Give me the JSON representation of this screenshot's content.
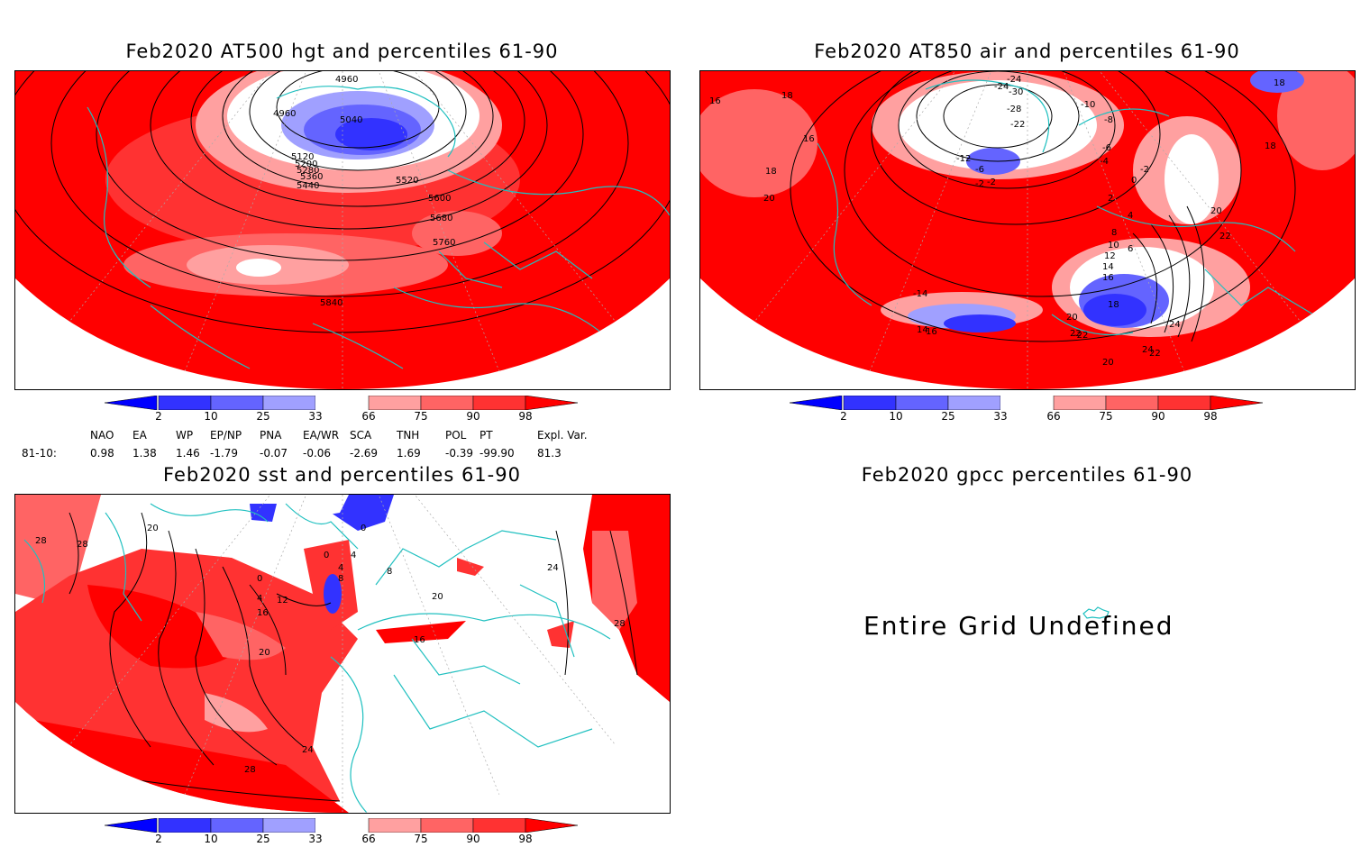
{
  "panels": {
    "z500": {
      "title": "Feb2020 AT500 hgt and percentiles 61-90",
      "contour_labels": [
        "4960",
        "4960",
        "5040",
        "5120",
        "5200",
        "5280",
        "5360",
        "5440",
        "5520",
        "5600",
        "5680",
        "5760",
        "5840"
      ]
    },
    "t850": {
      "title": "Feb2020 AT850 air and percentiles 61-90",
      "contour_labels": [
        "-24",
        "-30",
        "-28",
        "-22",
        "-10",
        "-8",
        "-6",
        "-4",
        "-2",
        "0",
        "2",
        "4",
        "6",
        "8",
        "10",
        "12",
        "14",
        "16",
        "18",
        "20",
        "22",
        "24",
        "-24",
        "-12",
        "-14",
        "-6",
        "-2",
        "14",
        "16",
        "16",
        "16",
        "18",
        "18",
        "18",
        "20",
        "20",
        "22",
        "22",
        "-22",
        "24",
        "20",
        "18",
        "-2"
      ]
    },
    "sst": {
      "title": "Feb2020 sst and percentiles 61-90",
      "contour_labels": [
        "28",
        "28",
        "20",
        "0",
        "4",
        "12",
        "16",
        "20",
        "24",
        "28",
        "8",
        "0",
        "4",
        "16",
        "24",
        "28",
        "4",
        "0",
        "20",
        "8"
      ]
    },
    "gpcc": {
      "title": "Feb2020 gpcc percentiles 61-90",
      "message": "Entire Grid Undefined"
    }
  },
  "colorbar": {
    "labels": [
      "2",
      "10",
      "25",
      "33",
      "66",
      "75",
      "90",
      "98"
    ],
    "colors": [
      "#0000ff",
      "#3232ff",
      "#6464ff",
      "#a0a0ff",
      "#ffffff",
      "#ffa0a0",
      "#ff6464",
      "#ff3232",
      "#ff0000"
    ]
  },
  "indices": {
    "headers": [
      "NAO",
      "EA",
      "WP",
      "EP/NP",
      "PNA",
      "EA/WR",
      "SCA",
      "TNH",
      "POL",
      "PT",
      "Expl. Var."
    ],
    "row_label": "81-10:",
    "values": [
      "0.98",
      "1.38",
      "1.46",
      "-1.79",
      "-0.07",
      "-0.06",
      "-2.69",
      "1.69",
      "-0.39",
      "-99.90",
      "81.3"
    ]
  },
  "chart_data": [
    {
      "type": "heatmap",
      "title": "Feb2020 AT500 hgt and percentiles 61-90",
      "contour_values": [
        4960,
        5040,
        5120,
        5200,
        5280,
        5360,
        5440,
        5520,
        5600,
        5680,
        5760,
        5840
      ],
      "color_levels": [
        2,
        10,
        25,
        33,
        66,
        75,
        90,
        98
      ]
    },
    {
      "type": "heatmap",
      "title": "Feb2020 AT850 air and percentiles 61-90",
      "contour_values": [
        -30,
        -28,
        -24,
        -22,
        -14,
        -12,
        -10,
        -8,
        -6,
        -4,
        -2,
        0,
        2,
        4,
        6,
        8,
        10,
        12,
        14,
        16,
        18,
        20,
        22,
        24
      ],
      "color_levels": [
        2,
        10,
        25,
        33,
        66,
        75,
        90,
        98
      ]
    },
    {
      "type": "heatmap",
      "title": "Feb2020 sst and percentiles 61-90",
      "contour_values": [
        0,
        4,
        8,
        12,
        16,
        20,
        24,
        28
      ],
      "color_levels": [
        2,
        10,
        25,
        33,
        66,
        75,
        90,
        98
      ]
    },
    {
      "type": "heatmap",
      "title": "Feb2020 gpcc percentiles 61-90",
      "message": "Entire Grid Undefined"
    }
  ]
}
